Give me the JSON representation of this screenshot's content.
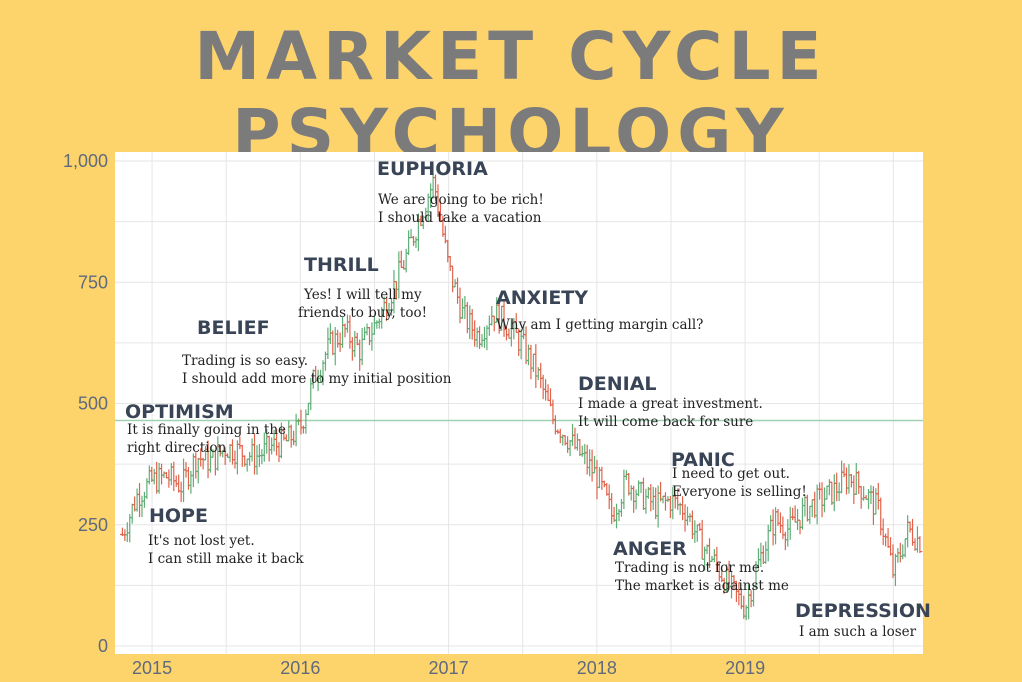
{
  "title": "MARKET CYCLE PSYCHOLOGY",
  "chart_data": {
    "type": "line",
    "style": "ohlc",
    "ylim": [
      0,
      1000
    ],
    "yticks": [
      0,
      250,
      500,
      750,
      1000
    ],
    "ytick_labels": [
      "0",
      "250",
      "500",
      "750",
      "1,000"
    ],
    "xlim": [
      2014.75,
      2020.2
    ],
    "xticks": [
      2015,
      2016,
      2017,
      2018,
      2019
    ],
    "xtick_labels": [
      "2015",
      "2016",
      "2017",
      "2018",
      "2019"
    ],
    "grid": true,
    "reference_line": 465,
    "colors": {
      "up": "#5fae77",
      "down": "#e0634c",
      "plot_bg": "#ffffff",
      "grid": "#e6e6e6",
      "reference": "#9fd2b0"
    },
    "x": [
      2014.8,
      2014.9,
      2015.0,
      2015.1,
      2015.2,
      2015.3,
      2015.4,
      2015.5,
      2015.6,
      2015.7,
      2015.8,
      2015.9,
      2016.0,
      2016.1,
      2016.2,
      2016.3,
      2016.4,
      2016.5,
      2016.6,
      2016.7,
      2016.8,
      2016.9,
      2017.0,
      2017.1,
      2017.2,
      2017.3,
      2017.4,
      2017.5,
      2017.6,
      2017.7,
      2017.8,
      2017.9,
      2018.0,
      2018.1,
      2018.2,
      2018.3,
      2018.4,
      2018.5,
      2018.6,
      2018.7,
      2018.8,
      2018.9,
      2019.0,
      2019.1,
      2019.2,
      2019.3,
      2019.4,
      2019.5,
      2019.6,
      2019.7,
      2019.8,
      2019.9,
      2020.0,
      2020.1,
      2020.2
    ],
    "values": [
      230,
      310,
      340,
      350,
      330,
      390,
      380,
      410,
      400,
      390,
      410,
      420,
      450,
      560,
      620,
      650,
      610,
      660,
      720,
      790,
      880,
      960,
      780,
      680,
      640,
      690,
      660,
      620,
      560,
      470,
      430,
      390,
      350,
      270,
      340,
      310,
      290,
      300,
      280,
      210,
      170,
      120,
      80,
      180,
      260,
      240,
      280,
      300,
      320,
      350,
      320,
      280,
      150,
      240,
      210
    ],
    "annotations": [
      {
        "phase": "EUPHORIA",
        "lines": [
          "We are going to be rich!",
          "I should take a vacation"
        ]
      },
      {
        "phase": "THRILL",
        "lines": [
          "Yes! I will tell my",
          "friends to buy, too!"
        ]
      },
      {
        "phase": "BELIEF",
        "lines": [
          "Trading is so easy.",
          "I should add more to my initial position"
        ]
      },
      {
        "phase": "OPTIMISM",
        "lines": [
          "It is finally going in the",
          "right direction"
        ]
      },
      {
        "phase": "HOPE",
        "lines": [
          "It's not lost yet.",
          "I can still make it back"
        ]
      },
      {
        "phase": "ANXIETY",
        "lines": [
          "Why am I getting margin call?"
        ]
      },
      {
        "phase": "DENIAL",
        "lines": [
          "I made a great investment.",
          "It will come back for sure"
        ]
      },
      {
        "phase": "PANIC",
        "lines": [
          "I need to get out.",
          "Everyone is selling!"
        ]
      },
      {
        "phase": "ANGER",
        "lines": [
          "Trading is not for me.",
          "The market is against me"
        ]
      },
      {
        "phase": "DEPRESSION",
        "lines": [
          "I am such a loser"
        ]
      }
    ]
  }
}
